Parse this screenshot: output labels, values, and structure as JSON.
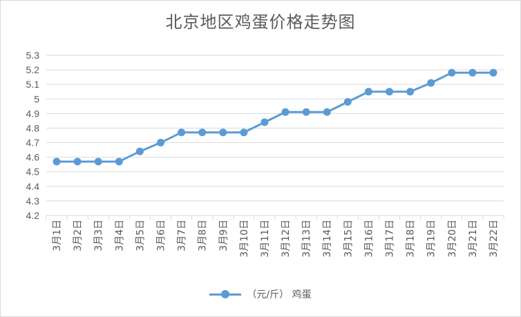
{
  "chart_data": {
    "type": "line",
    "title": "北京地区鸡蛋价格走势图",
    "categories": [
      "3月1日",
      "3月2日",
      "3月3日",
      "3月4日",
      "3月5日",
      "3月6日",
      "3月7日",
      "3月8日",
      "3月9日",
      "3月10日",
      "3月11日",
      "3月12日",
      "3月13日",
      "3月14日",
      "3月15日",
      "3月16日",
      "3月17日",
      "3月18日",
      "3月19日",
      "3月20日",
      "3月21日",
      "3月22日"
    ],
    "series": [
      {
        "name": "（元/斤）  鸡蛋",
        "values": [
          4.57,
          4.57,
          4.57,
          4.57,
          4.64,
          4.7,
          4.77,
          4.77,
          4.77,
          4.77,
          4.84,
          4.91,
          4.91,
          4.91,
          4.98,
          5.05,
          5.05,
          5.05,
          5.11,
          5.18,
          5.18,
          5.18
        ]
      }
    ],
    "y_ticks": [
      "4.2",
      "4.3",
      "4.4",
      "4.5",
      "4.6",
      "4.7",
      "4.8",
      "4.9",
      "5",
      "5.1",
      "5.2",
      "5.3"
    ],
    "ylim": [
      4.2,
      5.3
    ],
    "grid": true,
    "legend_position": "bottom",
    "colors": {
      "series": "#5b9bd5",
      "grid": "#d9d9d9",
      "text": "#595959"
    }
  }
}
